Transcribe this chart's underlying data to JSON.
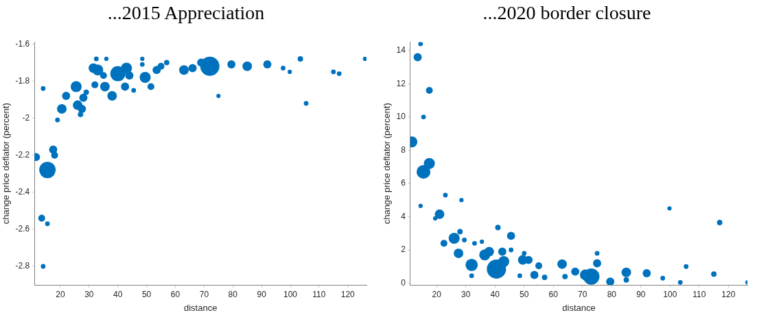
{
  "chart_data": [
    {
      "type": "bubble",
      "title": "...2015 Appreciation",
      "xlabel": "distance",
      "ylabel": "change price deflator (percent)",
      "color": "#0072bd",
      "grid": false,
      "legend": false,
      "xlim": [
        11,
        126.5
      ],
      "ylim": [
        -2.9,
        -1.59
      ],
      "xticks": [
        20,
        30,
        40,
        50,
        60,
        70,
        80,
        90,
        100,
        110,
        120
      ],
      "yticks": [
        -2.8,
        -2.6,
        -2.4,
        -2.2,
        -2,
        -1.8,
        -1.6
      ],
      "x": [
        11.5,
        15.5,
        13.5,
        15.5,
        14,
        17.5,
        18,
        14,
        19,
        20.5,
        22,
        25.5,
        26,
        27.5,
        27,
        28,
        29,
        31.5,
        33,
        32.5,
        32,
        35.5,
        36,
        35,
        38,
        40,
        43,
        42.5,
        45.5,
        44,
        48.5,
        48.5,
        49.5,
        51.5,
        53.5,
        55,
        57,
        63,
        66,
        69,
        72,
        75,
        79.5,
        85,
        92,
        97.5,
        99.8,
        103.5,
        105.5,
        115,
        117,
        126
      ],
      "values": [
        -2.21,
        -2.28,
        -2.54,
        -2.57,
        -2.8,
        -2.17,
        -2.2,
        -1.84,
        -2.01,
        -1.95,
        -1.88,
        -1.83,
        -1.93,
        -1.95,
        -1.98,
        -1.89,
        -1.86,
        -1.73,
        -1.74,
        -1.68,
        -1.82,
        -1.83,
        -1.68,
        -1.77,
        -1.88,
        -1.76,
        -1.73,
        -1.83,
        -1.85,
        -1.77,
        -1.68,
        -1.71,
        -1.78,
        -1.83,
        -1.74,
        -1.72,
        -1.7,
        -1.74,
        -1.73,
        -1.7,
        -1.72,
        -1.88,
        -1.71,
        -1.72,
        -1.71,
        -1.73,
        -1.75,
        -1.68,
        -1.92,
        -1.75,
        -1.76,
        -1.68
      ],
      "sizes": [
        0.18,
        0.73,
        0.13,
        0.06,
        0.06,
        0.18,
        0.13,
        0.06,
        0.06,
        0.25,
        0.18,
        0.33,
        0.25,
        0.18,
        0.08,
        0.18,
        0.08,
        0.25,
        0.33,
        0.06,
        0.13,
        0.25,
        0.05,
        0.13,
        0.25,
        0.62,
        0.33,
        0.18,
        0.06,
        0.18,
        0.05,
        0.06,
        0.33,
        0.13,
        0.18,
        0.13,
        0.08,
        0.25,
        0.18,
        0.18,
        1,
        0.05,
        0.18,
        0.25,
        0.18,
        0.06,
        0.05,
        0.08,
        0.06,
        0.06,
        0.06,
        0.05
      ]
    },
    {
      "type": "bubble",
      "title": "...2020 border closure",
      "xlabel": "distance",
      "ylabel": "change price deflator (percent)",
      "color": "#0072bd",
      "grid": false,
      "legend": false,
      "xlim": [
        11,
        126.5
      ],
      "ylim": [
        -0.1,
        14.5
      ],
      "xticks": [
        20,
        30,
        40,
        50,
        60,
        70,
        80,
        90,
        100,
        110,
        120
      ],
      "yticks": [
        0,
        2,
        4,
        6,
        8,
        10,
        12,
        14
      ],
      "x": [
        14.5,
        13.5,
        17.5,
        15.5,
        11.5,
        17.5,
        15.5,
        14.5,
        23,
        28.5,
        21,
        19.5,
        22.5,
        26,
        28,
        29.5,
        27.5,
        33,
        32,
        32,
        35.5,
        36.5,
        38,
        40.5,
        41,
        42.5,
        43,
        45.5,
        45.5,
        48.5,
        49.5,
        50,
        51.5,
        53.5,
        55,
        57,
        63,
        64,
        67.5,
        71,
        73,
        75,
        75,
        79.5,
        85,
        85,
        92,
        97.5,
        99.8,
        103.5,
        105.5,
        115,
        117,
        126.5
      ],
      "values": [
        14.4,
        13.6,
        11.6,
        10,
        8.5,
        7.2,
        6.7,
        4.65,
        5.3,
        5,
        4.15,
        3.9,
        2.4,
        2.7,
        3.1,
        2.6,
        1.8,
        2.4,
        1.1,
        0.45,
        2.5,
        1.7,
        1.9,
        0.85,
        3.35,
        1.9,
        1.3,
        2.85,
        2,
        0.45,
        1.4,
        1.8,
        1.4,
        0.5,
        1.05,
        0.35,
        1.15,
        0.4,
        0.7,
        0.5,
        0.4,
        1.2,
        1.8,
        0.1,
        0.65,
        0.2,
        0.6,
        0.3,
        4.5,
        0.05,
        1,
        0.55,
        3.65,
        0.05
      ],
      "sizes": [
        0.06,
        0.18,
        0.13,
        0.06,
        0.33,
        0.33,
        0.51,
        0.05,
        0.06,
        0.05,
        0.25,
        0.05,
        0.13,
        0.33,
        0.08,
        0.06,
        0.25,
        0.06,
        0.41,
        0.06,
        0.05,
        0.33,
        0.25,
        1,
        0.08,
        0.18,
        0.33,
        0.18,
        0.06,
        0.06,
        0.25,
        0.06,
        0.18,
        0.18,
        0.13,
        0.08,
        0.25,
        0.08,
        0.18,
        0.33,
        0.73,
        0.18,
        0.06,
        0.18,
        0.25,
        0.08,
        0.18,
        0.06,
        0.05,
        0.06,
        0.06,
        0.08,
        0.08,
        0.05
      ]
    }
  ]
}
